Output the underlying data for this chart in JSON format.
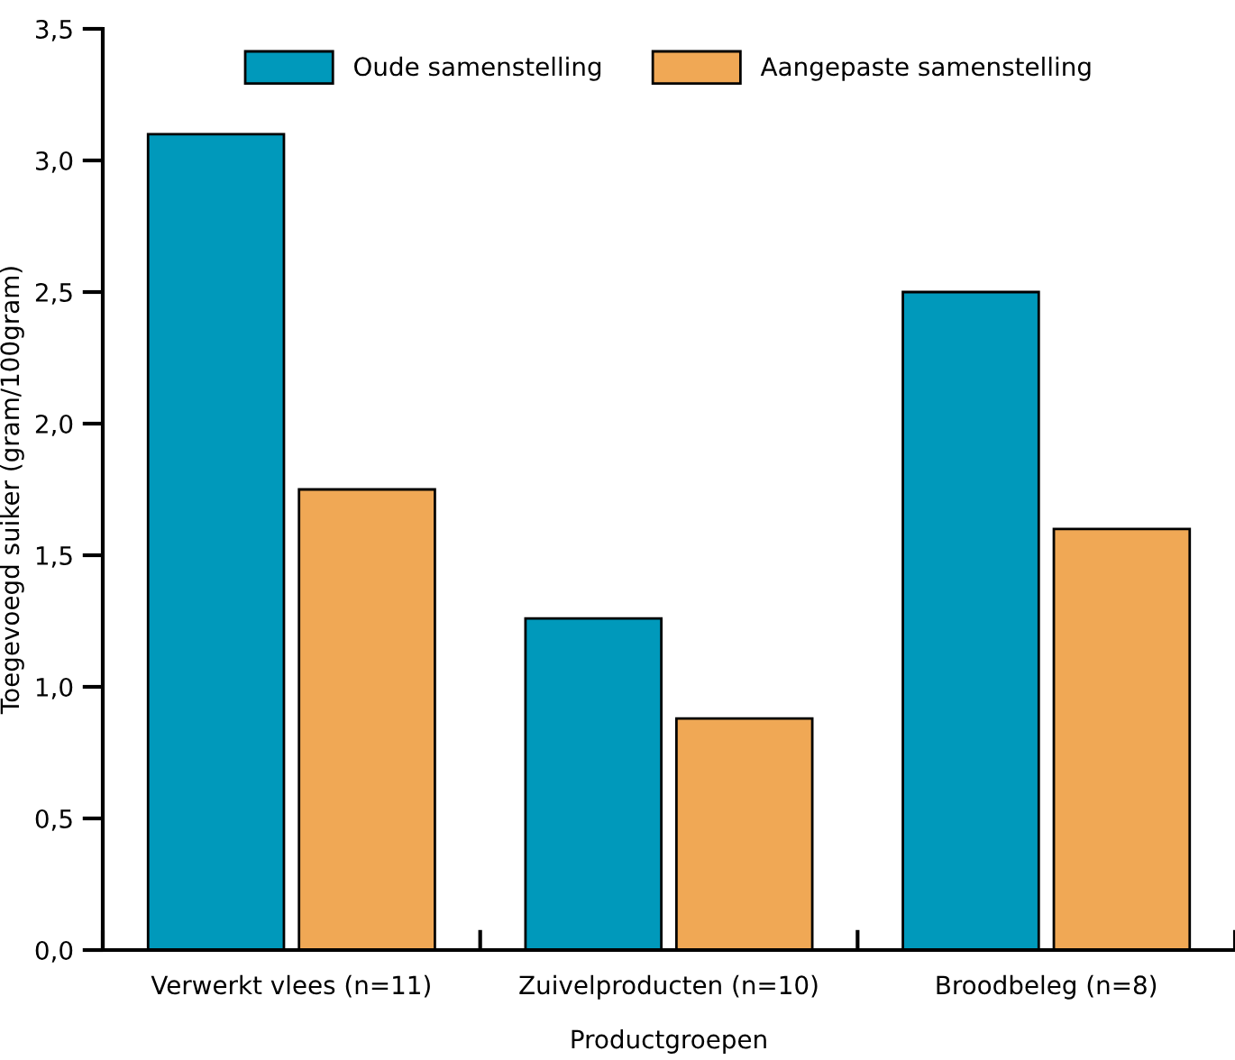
{
  "chart_data": {
    "type": "bar",
    "xlabel": "Productgroepen",
    "ylabel": "Toegevoegd suiker (gram/100gram)",
    "categories": [
      "Verwerkt vlees (n=11)",
      "Zuivelproducten (n=10)",
      "Broodbeleg (n=8)"
    ],
    "series": [
      {
        "name": "Oude samenstelling",
        "color": "#0099bb",
        "values": [
          3.1,
          1.26,
          2.5
        ]
      },
      {
        "name": "Aangepaste samenstelling",
        "color": "#f0a855",
        "values": [
          1.75,
          0.88,
          1.6
        ]
      }
    ],
    "ylim": [
      0,
      3.5
    ],
    "yticks": [
      {
        "value": 0,
        "label": "0,0"
      },
      {
        "value": 0.5,
        "label": "0,5"
      },
      {
        "value": 1,
        "label": "1,0"
      },
      {
        "value": 1.5,
        "label": "1,5"
      },
      {
        "value": 2,
        "label": "2,0"
      },
      {
        "value": 2.5,
        "label": "2,5"
      },
      {
        "value": 3,
        "label": "3,0"
      },
      {
        "value": 3.5,
        "label": "3,5"
      }
    ],
    "grid": false,
    "legend": "top"
  }
}
